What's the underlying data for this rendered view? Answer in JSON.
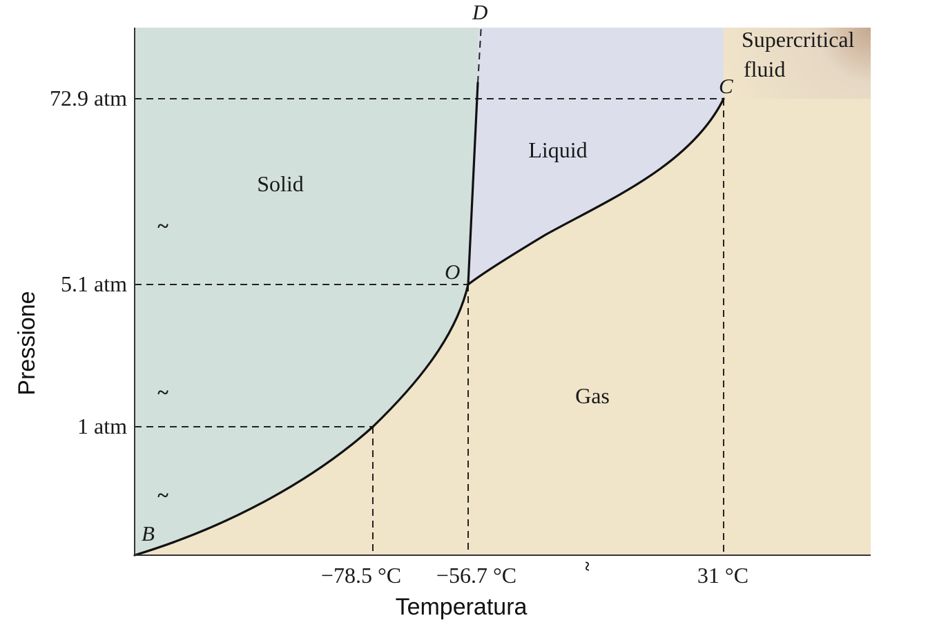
{
  "diagram": {
    "axes": {
      "x_label": "Temperatura",
      "y_label": "Pressione"
    },
    "y_ticks": [
      "72.9 atm",
      "5.1 atm",
      "1 atm"
    ],
    "x_ticks": [
      "−78.5 °C",
      "−56.7 °C",
      "31 °C"
    ],
    "regions": {
      "solid": "Solid",
      "liquid": "Liquid",
      "gas": "Gas",
      "supercritical_line1": "Supercritical",
      "supercritical_line2": "fluid"
    },
    "points": {
      "B": "B",
      "O": "O",
      "C": "C",
      "D": "D"
    },
    "axis_break_symbol": "~",
    "colors": {
      "solid": "#d1e0da",
      "liquid": "#dcdfeb",
      "gas": "#f0e4c9",
      "supercritical": "#d9c2a8",
      "line": "#111111"
    }
  }
}
